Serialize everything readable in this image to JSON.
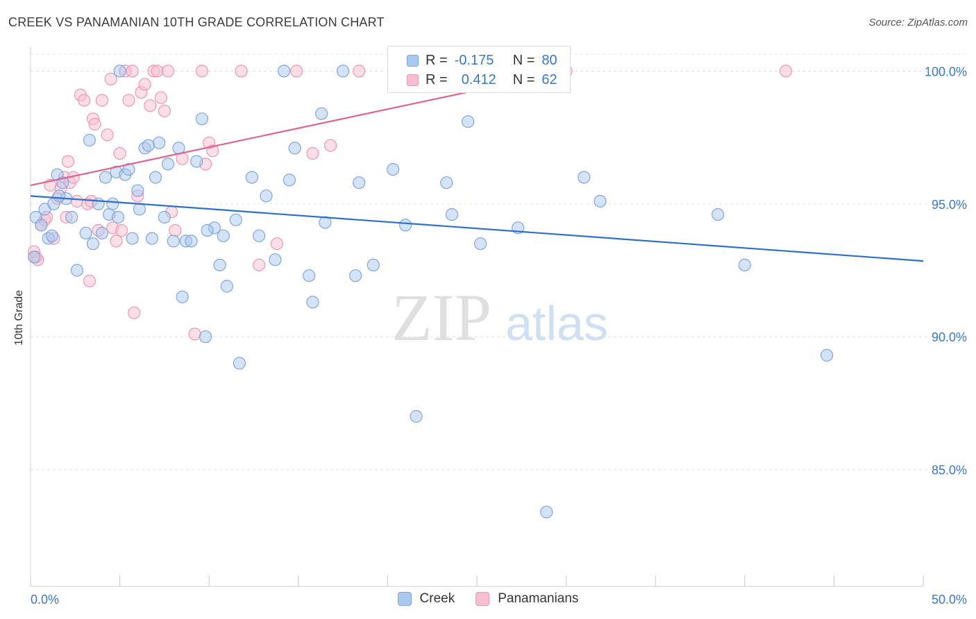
{
  "header": {
    "title": "CREEK VS PANAMANIAN 10TH GRADE CORRELATION CHART",
    "source": "Source: ZipAtlas.com"
  },
  "watermark": {
    "zip": "ZIP",
    "atlas": "atlas"
  },
  "legend_stats": [
    {
      "r_label": "R =",
      "r_value": "-0.175",
      "n_label": "N =",
      "n_value": "80"
    },
    {
      "r_label": "R =",
      "r_value": "0.412",
      "n_label": "N =",
      "n_value": "62"
    }
  ],
  "legend": {
    "creek": "Creek",
    "panamanians": "Panamanians"
  },
  "chart_data": {
    "type": "scatter",
    "title": "CREEK VS PANAMANIAN 10TH GRADE CORRELATION CHART",
    "ylabel": "10th Grade",
    "xlabel": "",
    "xlim": [
      0,
      50
    ],
    "ylim": [
      80.6,
      100.9
    ],
    "x_ticks": [
      "0.0%",
      "50.0%"
    ],
    "y_ticks": [
      {
        "value": 100,
        "label": "100.0%"
      },
      {
        "value": 95,
        "label": "95.0%"
      },
      {
        "value": 90,
        "label": "90.0%"
      },
      {
        "value": 85,
        "label": "85.0%"
      }
    ],
    "grid": true,
    "legend_position": "bottom",
    "colors": {
      "creek_fill": "#a9c8ee",
      "creek_stroke": "#7fa6dc",
      "creek_line": "#2e6fcb",
      "pan_fill": "#f7bfd0",
      "pan_stroke": "#ee97b3",
      "pan_line": "#e0628f",
      "tick_label": "#3a78c4"
    },
    "series": [
      {
        "name": "Creek",
        "r": -0.175,
        "n": 80,
        "trend": {
          "x": [
            0,
            50
          ],
          "y": [
            95.3,
            92.85
          ]
        },
        "points": [
          [
            0.3,
            94.5
          ],
          [
            0.6,
            94.2
          ],
          [
            0.8,
            94.8
          ],
          [
            1.0,
            93.7
          ],
          [
            1.2,
            93.8
          ],
          [
            1.3,
            95.0
          ],
          [
            1.5,
            96.1
          ],
          [
            1.8,
            95.8
          ],
          [
            2.0,
            95.2
          ],
          [
            2.3,
            94.5
          ],
          [
            2.6,
            92.5
          ],
          [
            3.1,
            93.9
          ],
          [
            3.3,
            97.4
          ],
          [
            3.5,
            93.5
          ],
          [
            3.8,
            95.0
          ],
          [
            4.0,
            93.9
          ],
          [
            4.2,
            96.0
          ],
          [
            4.4,
            94.6
          ],
          [
            4.6,
            95.0
          ],
          [
            4.8,
            96.2
          ],
          [
            5.0,
            100.0
          ],
          [
            5.3,
            96.1
          ],
          [
            5.5,
            96.3
          ],
          [
            5.7,
            93.7
          ],
          [
            6.0,
            95.5
          ],
          [
            6.1,
            94.8
          ],
          [
            6.4,
            97.1
          ],
          [
            6.6,
            97.2
          ],
          [
            6.8,
            93.7
          ],
          [
            7.0,
            96.0
          ],
          [
            7.2,
            97.3
          ],
          [
            7.5,
            94.5
          ],
          [
            7.7,
            96.5
          ],
          [
            8.0,
            93.6
          ],
          [
            8.3,
            97.1
          ],
          [
            8.5,
            91.5
          ],
          [
            8.7,
            93.6
          ],
          [
            9.0,
            93.6
          ],
          [
            9.3,
            96.6
          ],
          [
            9.6,
            98.2
          ],
          [
            9.8,
            90.0
          ],
          [
            10.3,
            94.1
          ],
          [
            10.6,
            92.7
          ],
          [
            10.8,
            93.8
          ],
          [
            11.0,
            91.9
          ],
          [
            11.5,
            94.4
          ],
          [
            11.7,
            89.0
          ],
          [
            12.4,
            96.0
          ],
          [
            12.8,
            93.8
          ],
          [
            13.2,
            95.3
          ],
          [
            13.7,
            92.9
          ],
          [
            14.2,
            100.0
          ],
          [
            14.5,
            95.9
          ],
          [
            14.8,
            97.1
          ],
          [
            15.6,
            92.3
          ],
          [
            15.8,
            91.3
          ],
          [
            16.3,
            98.4
          ],
          [
            16.5,
            94.3
          ],
          [
            17.5,
            100.0
          ],
          [
            18.2,
            92.3
          ],
          [
            18.4,
            95.8
          ],
          [
            19.2,
            92.7
          ],
          [
            20.3,
            96.3
          ],
          [
            21.0,
            94.2
          ],
          [
            21.6,
            87.0
          ],
          [
            23.3,
            95.8
          ],
          [
            23.6,
            94.6
          ],
          [
            24.5,
            98.1
          ],
          [
            25.2,
            93.5
          ],
          [
            27.3,
            94.1
          ],
          [
            28.9,
            83.4
          ],
          [
            31.0,
            96.0
          ],
          [
            31.9,
            95.1
          ],
          [
            38.5,
            94.6
          ],
          [
            40.0,
            92.7
          ],
          [
            44.6,
            89.3
          ],
          [
            0.2,
            93.0
          ],
          [
            1.6,
            95.3
          ],
          [
            4.9,
            94.5
          ],
          [
            9.9,
            94.0
          ]
        ]
      },
      {
        "name": "Panamanians",
        "r": 0.412,
        "n": 62,
        "trend": {
          "x": [
            0,
            30
          ],
          "y": [
            95.7,
            100.0
          ]
        },
        "points": [
          [
            0.2,
            93.2
          ],
          [
            0.4,
            92.9
          ],
          [
            0.6,
            94.2
          ],
          [
            0.8,
            94.4
          ],
          [
            0.9,
            94.5
          ],
          [
            1.1,
            95.7
          ],
          [
            1.3,
            93.7
          ],
          [
            1.5,
            95.2
          ],
          [
            1.7,
            95.6
          ],
          [
            1.9,
            96.0
          ],
          [
            2.1,
            96.6
          ],
          [
            2.2,
            95.8
          ],
          [
            2.4,
            96.0
          ],
          [
            2.6,
            95.1
          ],
          [
            2.8,
            99.1
          ],
          [
            3.0,
            98.9
          ],
          [
            3.2,
            95.0
          ],
          [
            3.3,
            92.1
          ],
          [
            3.5,
            98.2
          ],
          [
            3.6,
            98.0
          ],
          [
            3.8,
            94.0
          ],
          [
            4.0,
            98.9
          ],
          [
            4.3,
            97.6
          ],
          [
            4.5,
            99.7
          ],
          [
            4.6,
            94.1
          ],
          [
            4.8,
            93.6
          ],
          [
            5.0,
            96.9
          ],
          [
            5.3,
            100.0
          ],
          [
            5.5,
            98.9
          ],
          [
            5.7,
            100.0
          ],
          [
            5.8,
            90.9
          ],
          [
            6.2,
            99.2
          ],
          [
            6.4,
            99.5
          ],
          [
            6.7,
            98.7
          ],
          [
            6.9,
            100.0
          ],
          [
            7.1,
            100.0
          ],
          [
            7.3,
            99.0
          ],
          [
            7.5,
            98.5
          ],
          [
            7.7,
            100.0
          ],
          [
            7.9,
            94.7
          ],
          [
            8.1,
            94.0
          ],
          [
            8.5,
            96.7
          ],
          [
            9.2,
            90.1
          ],
          [
            9.6,
            100.0
          ],
          [
            9.8,
            96.5
          ],
          [
            10.0,
            97.3
          ],
          [
            10.2,
            97.0
          ],
          [
            11.8,
            100.0
          ],
          [
            12.8,
            92.7
          ],
          [
            13.8,
            93.5
          ],
          [
            14.9,
            100.0
          ],
          [
            15.8,
            96.9
          ],
          [
            16.8,
            97.2
          ],
          [
            18.4,
            100.0
          ],
          [
            22.3,
            100.0
          ],
          [
            30.0,
            100.0
          ],
          [
            42.3,
            100.0
          ],
          [
            0.3,
            93.0
          ],
          [
            2.0,
            94.5
          ],
          [
            3.4,
            95.1
          ],
          [
            5.1,
            94.0
          ],
          [
            6.0,
            95.3
          ]
        ]
      }
    ]
  }
}
